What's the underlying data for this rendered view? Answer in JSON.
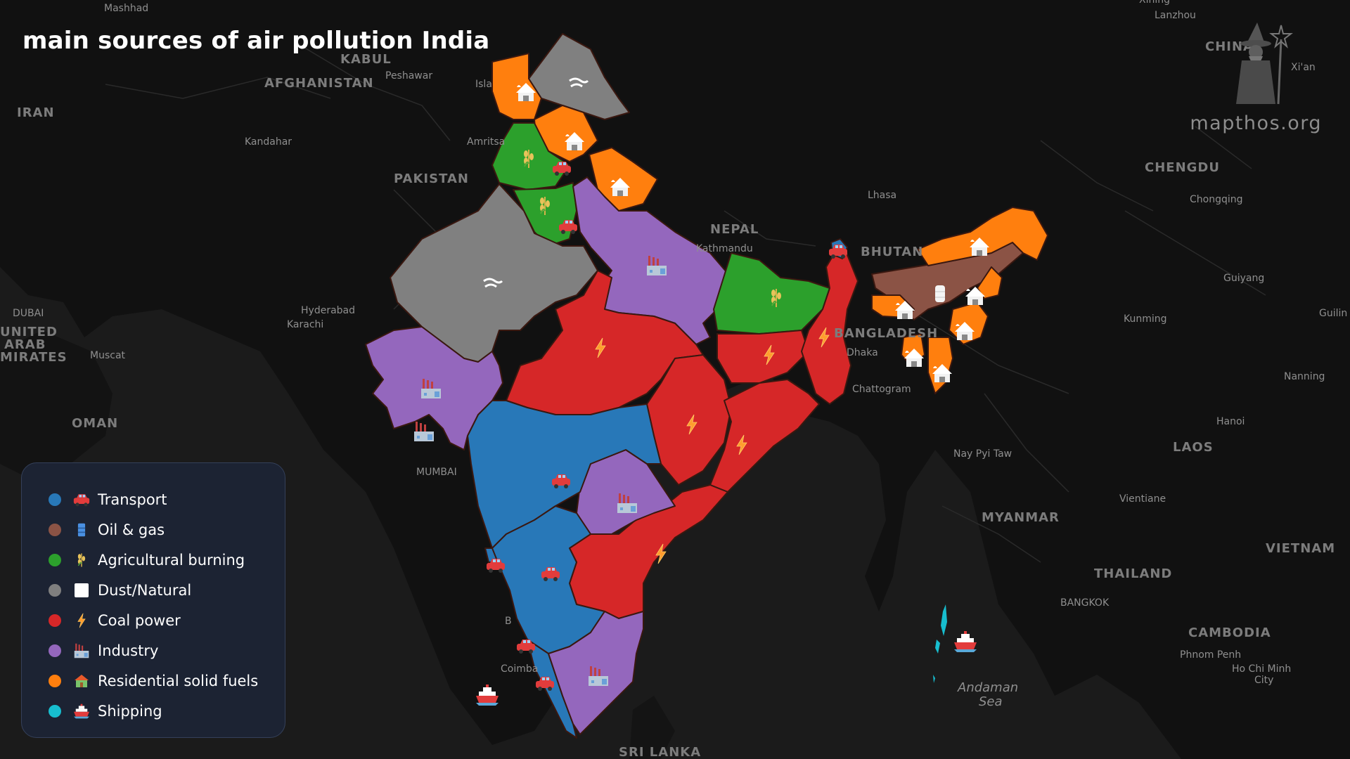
{
  "title": "main sources of air pollution India",
  "brand": {
    "text": "mapthos.org",
    "logo_icon": "wizard-icon"
  },
  "colors": {
    "background_land": "#141414",
    "background_sea": "#232323",
    "transport": "#2a78b8",
    "oil_gas": "#8b5345",
    "agricultural_burning": "#2ea02e",
    "dust_natural": "#808080",
    "coal_power": "#d62428",
    "industry": "#9467bd",
    "residential_solid_fuels": "#ff7f0e",
    "shipping": "#17becf"
  },
  "legend": [
    {
      "label": "Transport",
      "color": "#2878b8",
      "icon": "car-icon"
    },
    {
      "label": "Oil & gas",
      "color": "#8b5345",
      "icon": "oil-barrel-icon"
    },
    {
      "label": "Agricultural burning",
      "color": "#2ca02c",
      "icon": "crop-icon"
    },
    {
      "label": "Dust/Natural",
      "color": "#7f7f7f",
      "icon": "dust-icon"
    },
    {
      "label": "Coal power",
      "color": "#d62728",
      "icon": "lightning-icon"
    },
    {
      "label": "Industry",
      "color": "#9467bd",
      "icon": "factory-icon"
    },
    {
      "label": "Residential solid fuels",
      "color": "#ff7f0e",
      "icon": "house-fire-icon"
    },
    {
      "label": "Shipping",
      "color": "#17becf",
      "icon": "ship-icon"
    }
  ],
  "map_labels": {
    "mashhad": "Mashhad",
    "kabul": "KABUL",
    "islamabad": "Isla",
    "peshawar": "Peshawar",
    "afghanistan": "AFGHANISTAN",
    "iran": "IRAN",
    "kandahar": "Kandahar",
    "amritsar": "Amritsa",
    "pakistan": "PAKISTAN",
    "hyderabad": "Hyderabad",
    "karachi": "Karachi",
    "dubai": "DUBAI",
    "uae": "UNITED ARAB EMIRATES",
    "muscat": "Muscat",
    "oman": "OMAN",
    "mumbai": "MUMBAI",
    "nepal": "NEPAL",
    "kathmandu": "Kathmandu",
    "bhutan": "BHUTAN",
    "lhasa": "Lhasa",
    "bangladesh": "BANGLADESH",
    "dhaka": "Dhaka",
    "chattogram": "Chattogram",
    "china": "CHINA",
    "lanzhou": "Lanzhou",
    "xian": "Xi'an",
    "chengdu": "CHENGDU",
    "chongqing": "Chongqing",
    "guiyang": "Guiyang",
    "kunming": "Kunming",
    "nanning": "Nanning",
    "hanoi": "Hanoi",
    "laos": "LAOS",
    "vientiane": "Vientiane",
    "myanmar": "MYANMAR",
    "nay_pyi_taw": "Nay Pyi Taw",
    "thailand": "THAILAND",
    "bangkok": "BANGKOK",
    "cambodia": "CAMBODIA",
    "phnom_penh": "Phnom Penh",
    "ho_chi_minh": "Ho Chi Minh City",
    "vietnam": "VIETNAM",
    "andaman_sea": "Andaman Sea",
    "sri_lanka": "SRI LANKA",
    "coimbatore": "Coimba",
    "bengaluru": "B",
    "gulin": "Guilin",
    "xining": "Xining"
  }
}
